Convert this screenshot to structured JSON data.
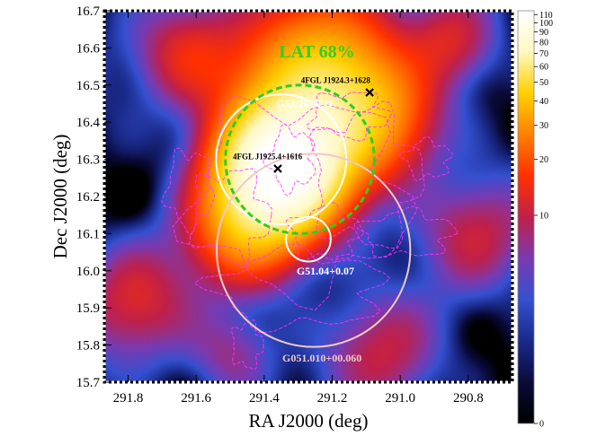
{
  "chart_data": {
    "type": "heatmap",
    "xlabel": "RA J2000 (deg)",
    "ylabel": "Dec J2000 (deg)",
    "xlim": [
      291.87,
      290.67
    ],
    "ylim": [
      15.7,
      16.7
    ],
    "x_ticks": [
      "291.8",
      "291.6",
      "291.4",
      "291.2",
      "291.0",
      "290.8"
    ],
    "y_ticks": [
      "16.7",
      "16.6",
      "16.5",
      "16.4",
      "16.3",
      "16.2",
      "16.1",
      "16.0",
      "15.9",
      "15.8",
      "15.7"
    ],
    "colorbar": {
      "scale": "log",
      "range": [
        0,
        115
      ],
      "ticks": [
        "110",
        "100",
        "90",
        "80",
        "70",
        "60",
        "50",
        "40",
        "30",
        "20",
        "10",
        "0"
      ],
      "colors": [
        "#000000",
        "#0a0a3a",
        "#1a2a8a",
        "#3550d0",
        "#7a3ab0",
        "#c0204a",
        "#ff3000",
        "#ff8000",
        "#ffd000",
        "#fff8c0",
        "#ffffff"
      ]
    },
    "sources": [
      {
        "name": "4FGL J1924.3+1628",
        "ra": 291.09,
        "dec": 16.48
      },
      {
        "name": "4FGL J1925.4+1616",
        "ra": 291.36,
        "dec": 16.275
      }
    ],
    "regions": [
      {
        "name": "G51.26+0.11",
        "ra": 291.35,
        "dec": 16.3,
        "radius_deg": 0.175,
        "color": "#ffffff"
      },
      {
        "name": "G51.04+0.07",
        "ra": 291.27,
        "dec": 16.085,
        "radius_deg": 0.06,
        "color": "#ffffff"
      },
      {
        "name": "G051.010+00.060",
        "ra": 291.255,
        "dec": 16.055,
        "radius_deg": 0.26,
        "color": "#f0c8c8"
      }
    ],
    "lat_region": {
      "name": "LAT 68%",
      "ra": 291.295,
      "dec": 16.3,
      "radius_deg": 0.2,
      "color": "#33cc22"
    },
    "emission_blobs": [
      {
        "ra": 291.35,
        "dec": 16.27,
        "sigma_deg": 0.1,
        "amp": 110
      },
      {
        "ra": 291.27,
        "dec": 16.44,
        "sigma_deg": 0.14,
        "amp": 45
      },
      {
        "ra": 291.08,
        "dec": 16.42,
        "sigma_deg": 0.11,
        "amp": 22
      },
      {
        "ra": 291.45,
        "dec": 16.12,
        "sigma_deg": 0.1,
        "amp": 30
      },
      {
        "ra": 291.23,
        "dec": 16.62,
        "sigma_deg": 0.12,
        "amp": 14
      },
      {
        "ra": 291.62,
        "dec": 16.58,
        "sigma_deg": 0.09,
        "amp": 12
      },
      {
        "ra": 290.85,
        "dec": 16.62,
        "sigma_deg": 0.08,
        "amp": 10
      },
      {
        "ra": 291.78,
        "dec": 15.92,
        "sigma_deg": 0.1,
        "amp": 11
      },
      {
        "ra": 291.05,
        "dec": 15.78,
        "sigma_deg": 0.1,
        "amp": 9
      },
      {
        "ra": 290.78,
        "dec": 16.1,
        "sigma_deg": 0.1,
        "amp": 9
      },
      {
        "ra": 291.5,
        "dec": 15.78,
        "sigma_deg": 0.08,
        "amp": 7
      }
    ]
  }
}
